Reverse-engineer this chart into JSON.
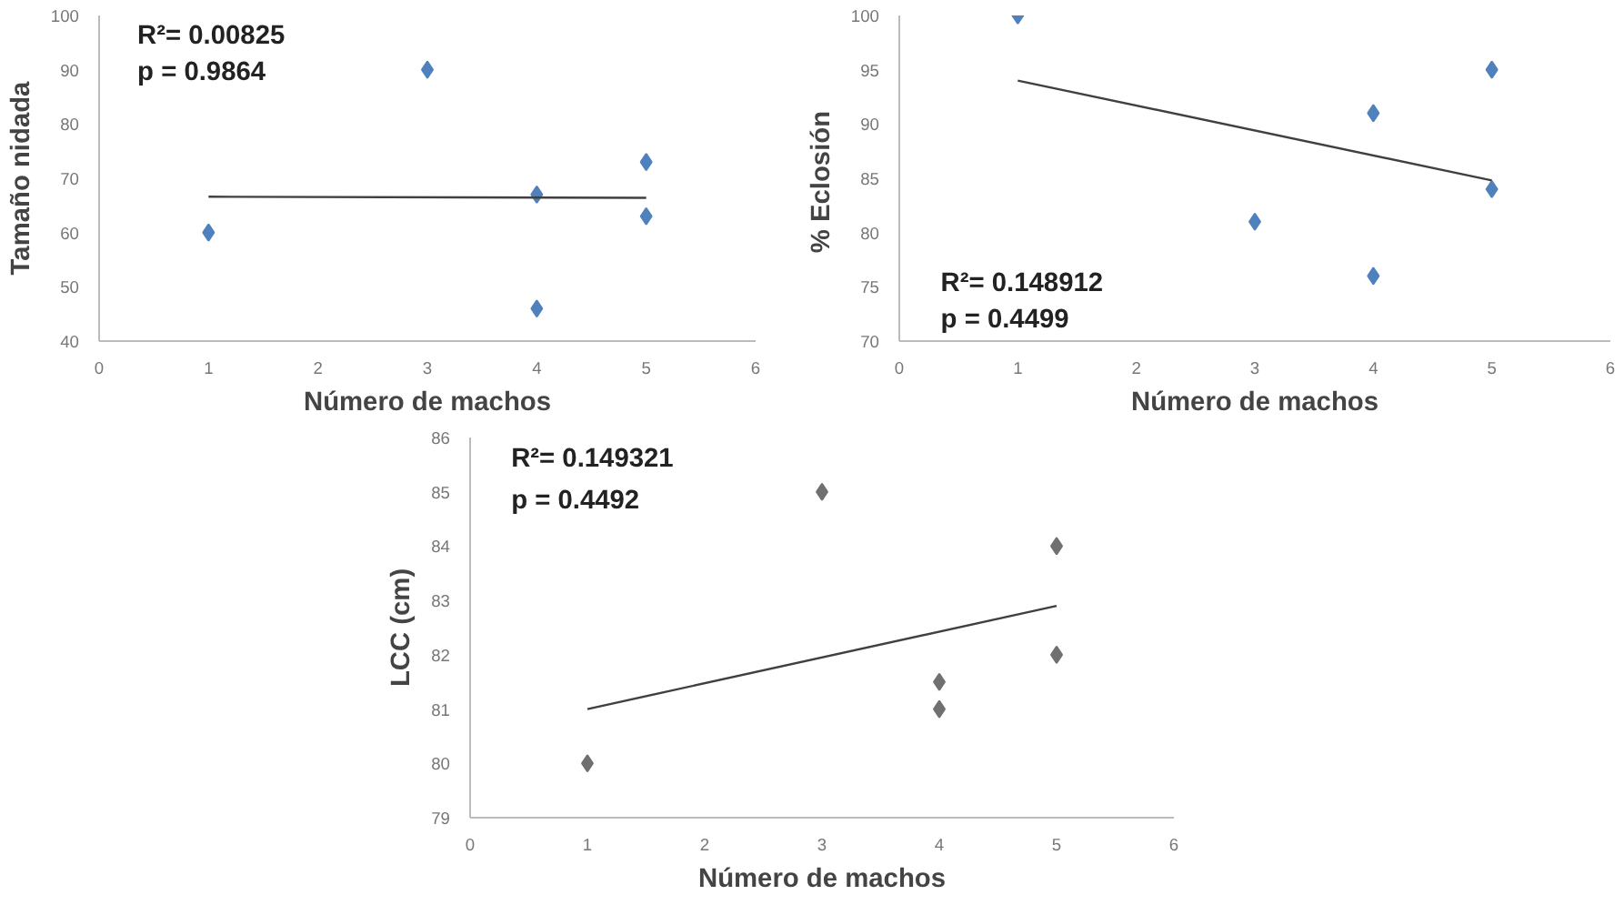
{
  "chart_data": [
    {
      "type": "scatter",
      "xlabel": "Número de machos",
      "ylabel": "Tamaño nidada",
      "xlim": [
        0,
        6
      ],
      "xticks": [
        0,
        1,
        2,
        3,
        4,
        5,
        6
      ],
      "ylim": [
        40,
        100
      ],
      "yticks": [
        40,
        50,
        60,
        70,
        80,
        90,
        100
      ],
      "grid": false,
      "annotations": [
        "R²= 0.00825",
        "p = 0.9864"
      ],
      "series": [
        {
          "marker": "diamond",
          "color": "#4f81bd",
          "x": [
            1,
            3,
            4,
            4,
            5,
            5
          ],
          "values": [
            60,
            90,
            67,
            46,
            73,
            63
          ]
        },
        {
          "type": "line",
          "marker": "none",
          "color": "#404040",
          "x": [
            1,
            5
          ],
          "values": [
            66.6,
            66.4
          ]
        }
      ]
    },
    {
      "type": "scatter",
      "xlabel": "Número de machos",
      "ylabel": "%  Eclosión",
      "xlim": [
        0,
        6
      ],
      "xticks": [
        0,
        1,
        2,
        3,
        4,
        5,
        6
      ],
      "ylim": [
        70,
        100
      ],
      "yticks": [
        70,
        75,
        80,
        85,
        90,
        95,
        100
      ],
      "grid": false,
      "annotations": [
        "R²= 0.148912",
        "p = 0.4499"
      ],
      "series": [
        {
          "marker": "diamond",
          "color": "#4f81bd",
          "x": [
            1,
            3,
            4,
            4,
            5,
            5
          ],
          "values": [
            100,
            81,
            91,
            76,
            95,
            84
          ]
        },
        {
          "type": "line",
          "marker": "none",
          "color": "#404040",
          "x": [
            1,
            5
          ],
          "values": [
            94,
            84.8
          ]
        }
      ]
    },
    {
      "type": "scatter",
      "xlabel": "Número de machos",
      "ylabel": "LCC (cm)",
      "xlim": [
        0,
        6
      ],
      "xticks": [
        0,
        1,
        2,
        3,
        4,
        5,
        6
      ],
      "ylim": [
        79,
        86
      ],
      "yticks": [
        79,
        80,
        81,
        82,
        83,
        84,
        85,
        86
      ],
      "grid": false,
      "annotations": [
        "R²= 0.149321",
        "p = 0.4492"
      ],
      "series": [
        {
          "marker": "diamond",
          "color": "#707070",
          "x": [
            1,
            3,
            4,
            4,
            5,
            5
          ],
          "values": [
            80,
            85,
            81.5,
            81,
            84,
            82
          ]
        },
        {
          "type": "line",
          "marker": "none",
          "color": "#404040",
          "x": [
            1,
            5
          ],
          "values": [
            81,
            82.9
          ]
        }
      ]
    }
  ]
}
